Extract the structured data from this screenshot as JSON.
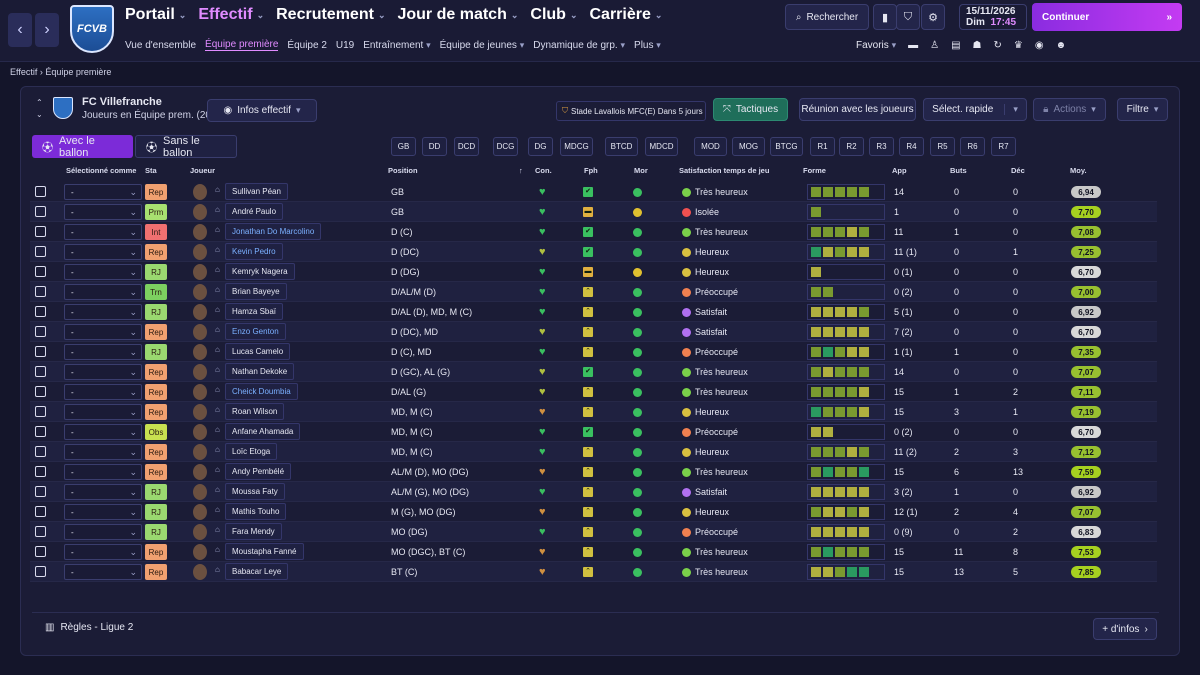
{
  "header": {
    "main_nav": [
      {
        "label": "Portail",
        "active": false
      },
      {
        "label": "Effectif",
        "active": true
      },
      {
        "label": "Recrutement",
        "active": false
      },
      {
        "label": "Jour de match",
        "active": false
      },
      {
        "label": "Club",
        "active": false
      },
      {
        "label": "Carrière",
        "active": false
      }
    ],
    "sub_nav": [
      {
        "label": "Vue d'ensemble",
        "active": false,
        "dropdown": false
      },
      {
        "label": "Équipe première",
        "active": true,
        "dropdown": false
      },
      {
        "label": "Équipe 2",
        "active": false,
        "dropdown": false
      },
      {
        "label": "U19",
        "active": false,
        "dropdown": false
      },
      {
        "label": "Entraînement",
        "active": false,
        "dropdown": true
      },
      {
        "label": "Équipe de jeunes",
        "active": false,
        "dropdown": true
      },
      {
        "label": "Dynamique de grp.",
        "active": false,
        "dropdown": true
      },
      {
        "label": "Plus",
        "active": false,
        "dropdown": true
      }
    ],
    "logo_text": "FCVB",
    "search_label": "Rechercher",
    "date": "15/11/2026",
    "day": "Dim",
    "time": "17:45",
    "continue_label": "Continuer",
    "favorites_label": "Favoris",
    "accent": "#c43bf2"
  },
  "breadcrumb": {
    "parent": "Effectif",
    "current": "Équipe première"
  },
  "club": {
    "name": "FC Villefranche",
    "subtitle": "Joueurs en Équipe prem. (20)"
  },
  "toolbar": {
    "infos_label": "Infos effectif",
    "stadium_label": "Stade Lavallois MFC(E) Dans 5 jours",
    "tactics_label": "Tactiques",
    "meeting_label": "Réunion avec les joueurs",
    "quick_select_label": "Sélect. rapide",
    "actions_label": "Actions",
    "filter_label": "Filtre"
  },
  "toggles": {
    "with_ball": "Avec le ballon",
    "without_ball": "Sans le ballon"
  },
  "positions": [
    "GB",
    "DD",
    "DCD",
    "DCG",
    "DG",
    "MDCG",
    "BTCD",
    "MDCD",
    "MOD",
    "MOG",
    "BTCG",
    "R1",
    "R2",
    "R3",
    "R4",
    "R5",
    "R6",
    "R7"
  ],
  "columns": {
    "selected_as": "Sélectionné comme",
    "status": "Sta",
    "player": "Joueur",
    "position": "Position",
    "condition": "Con.",
    "match_fitness": "Fph",
    "morale": "Mor",
    "playing_time": "Satisfaction temps de jeu",
    "form": "Forme",
    "apps": "App",
    "goals": "Buts",
    "assists": "Déc",
    "avg": "Moy."
  },
  "players": [
    {
      "sel": "-",
      "sta": "Rep",
      "name": "Sullivan Péan",
      "link": false,
      "pos": "GB",
      "sat": "Très heureux",
      "app": "14",
      "goals": "0",
      "ast": "0",
      "avg": "6,94"
    },
    {
      "sel": "-",
      "sta": "Prm",
      "name": "André Paulo",
      "link": false,
      "pos": "GB",
      "sat": "Isolée",
      "app": "1",
      "goals": "0",
      "ast": "0",
      "avg": "7,70"
    },
    {
      "sel": "-",
      "sta": "Int",
      "name": "Jonathan Do Marcolino",
      "link": true,
      "pos": "D (C)",
      "sat": "Très heureux",
      "app": "11",
      "goals": "1",
      "ast": "0",
      "avg": "7,08"
    },
    {
      "sel": "-",
      "sta": "Rep",
      "name": "Kevin Pedro",
      "link": true,
      "pos": "D (DC)",
      "sat": "Heureux",
      "app": "11 (1)",
      "goals": "0",
      "ast": "1",
      "avg": "7,25"
    },
    {
      "sel": "-",
      "sta": "RJ",
      "name": "Kemryk Nagera",
      "link": false,
      "pos": "D (DG)",
      "sat": "Heureux",
      "app": "0 (1)",
      "goals": "0",
      "ast": "0",
      "avg": "6,70"
    },
    {
      "sel": "-",
      "sta": "Trn",
      "name": "Brian Bayeye",
      "link": false,
      "pos": "D/AL/M (D)",
      "sat": "Préoccupé",
      "app": "0 (2)",
      "goals": "0",
      "ast": "0",
      "avg": "7,00"
    },
    {
      "sel": "-",
      "sta": "RJ",
      "name": "Hamza Sbaï",
      "link": false,
      "pos": "D/AL (D), MD, M (C)",
      "sat": "Satisfait",
      "app": "5 (1)",
      "goals": "0",
      "ast": "0",
      "avg": "6,92"
    },
    {
      "sel": "-",
      "sta": "Rep",
      "name": "Enzo Genton",
      "link": true,
      "pos": "D (DC), MD",
      "sat": "Satisfait",
      "app": "7 (2)",
      "goals": "0",
      "ast": "0",
      "avg": "6,70"
    },
    {
      "sel": "-",
      "sta": "RJ",
      "name": "Lucas Camelo",
      "link": false,
      "pos": "D (C), MD",
      "sat": "Préoccupé",
      "app": "1 (1)",
      "goals": "1",
      "ast": "0",
      "avg": "7,35"
    },
    {
      "sel": "-",
      "sta": "Rep",
      "name": "Nathan Dekoke",
      "link": false,
      "pos": "D (GC), AL (G)",
      "sat": "Très heureux",
      "app": "14",
      "goals": "0",
      "ast": "0",
      "avg": "7,07"
    },
    {
      "sel": "-",
      "sta": "Rep",
      "name": "Cheick Doumbia",
      "link": true,
      "pos": "D/AL (G)",
      "sat": "Très heureux",
      "app": "15",
      "goals": "1",
      "ast": "2",
      "avg": "7,11"
    },
    {
      "sel": "-",
      "sta": "Rep",
      "name": "Roan Wilson",
      "link": false,
      "pos": "MD, M (C)",
      "sat": "Heureux",
      "app": "15",
      "goals": "3",
      "ast": "1",
      "avg": "7,19"
    },
    {
      "sel": "-",
      "sta": "Obs",
      "name": "Anfane Ahamada",
      "link": false,
      "pos": "MD, M (C)",
      "sat": "Préoccupé",
      "app": "0 (2)",
      "goals": "0",
      "ast": "0",
      "avg": "6,70"
    },
    {
      "sel": "-",
      "sta": "Rep",
      "name": "Loïc Etoga",
      "link": false,
      "pos": "MD, M (C)",
      "sat": "Heureux",
      "app": "11 (2)",
      "goals": "2",
      "ast": "3",
      "avg": "7,12"
    },
    {
      "sel": "-",
      "sta": "Rep",
      "name": "Andy Pembélé",
      "link": false,
      "pos": "AL/M (D), MO (DG)",
      "sat": "Très heureux",
      "app": "15",
      "goals": "6",
      "ast": "13",
      "avg": "7,59"
    },
    {
      "sel": "-",
      "sta": "RJ",
      "name": "Moussa Faty",
      "link": false,
      "pos": "AL/M (G), MO (DG)",
      "sat": "Satisfait",
      "app": "3 (2)",
      "goals": "1",
      "ast": "0",
      "avg": "6,92"
    },
    {
      "sel": "-",
      "sta": "RJ",
      "name": "Mathis Touho",
      "link": false,
      "pos": "M (G), MO (DG)",
      "sat": "Heureux",
      "app": "12 (1)",
      "goals": "2",
      "ast": "4",
      "avg": "7,07"
    },
    {
      "sel": "-",
      "sta": "RJ",
      "name": "Fara Mendy",
      "link": false,
      "pos": "MO (DG)",
      "sat": "Préoccupé",
      "app": "0 (9)",
      "goals": "0",
      "ast": "2",
      "avg": "6,83"
    },
    {
      "sel": "-",
      "sta": "Rep",
      "name": "Moustapha Fanné",
      "link": false,
      "pos": "MO (DGC), BT (C)",
      "sat": "Très heureux",
      "app": "15",
      "goals": "11",
      "ast": "8",
      "avg": "7,53"
    },
    {
      "sel": "-",
      "sta": "Rep",
      "name": "Babacar Leye",
      "link": false,
      "pos": "BT (C)",
      "sat": "Très heureux",
      "app": "15",
      "goals": "13",
      "ast": "5",
      "avg": "7,85"
    }
  ],
  "footer": {
    "rules_label": "Règles - Ligue 2",
    "more_label": "+ d'infos"
  }
}
